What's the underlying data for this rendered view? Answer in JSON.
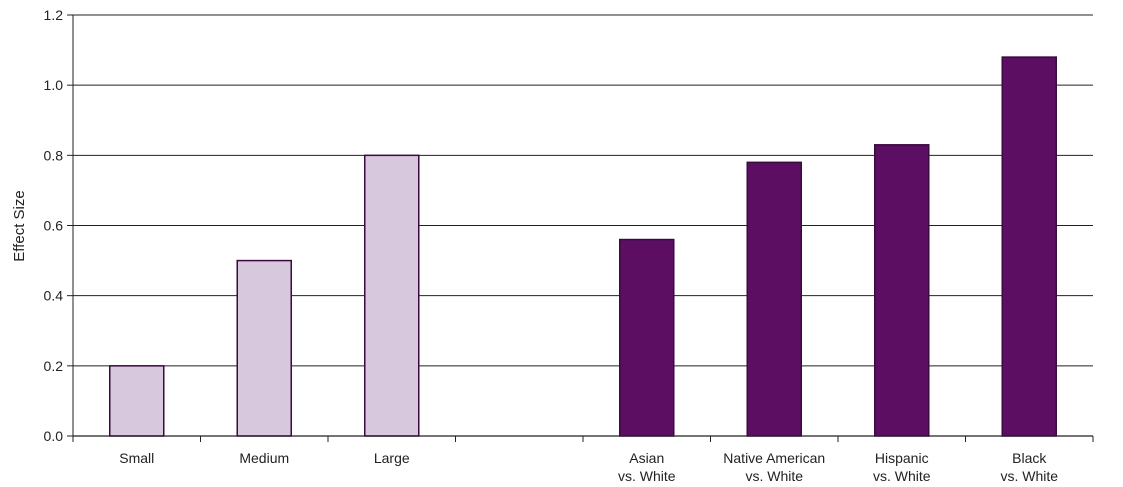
{
  "chart_data": {
    "type": "bar",
    "categories": [
      [
        "Small"
      ],
      [
        "Medium"
      ],
      [
        "Large"
      ],
      [
        ""
      ],
      [
        "Asian",
        "vs. White"
      ],
      [
        "Native American",
        "vs. White"
      ],
      [
        "Hispanic",
        "vs. White"
      ],
      [
        "Black",
        "vs. White"
      ]
    ],
    "values": [
      0.2,
      0.5,
      0.8,
      null,
      0.56,
      0.78,
      0.83,
      1.08
    ],
    "bar_groups": [
      "reference",
      "reference",
      "reference",
      "empty",
      "comparison",
      "comparison",
      "comparison",
      "comparison"
    ],
    "title": "",
    "xlabel": "",
    "ylabel": "Effect Size",
    "ylim": [
      0,
      1.2
    ],
    "yticks": [
      "0.0",
      "0.2",
      "0.4",
      "0.6",
      "0.8",
      "1.0",
      "1.2"
    ],
    "grid": true,
    "colors": {
      "reference_fill": "#d8c8de",
      "comparison_fill": "#5c0f62",
      "bar_stroke": "#3a0a3e",
      "grid": "#222222",
      "axis": "#222222"
    }
  }
}
